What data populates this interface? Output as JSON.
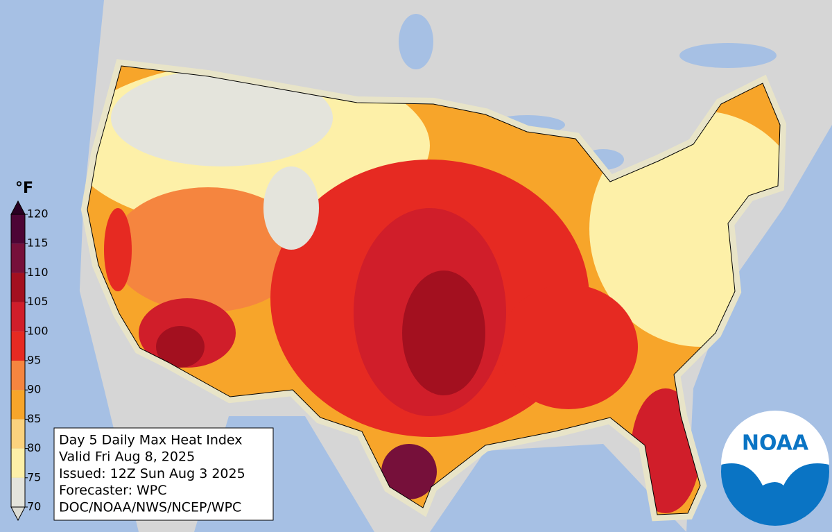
{
  "legend": {
    "unit": "°F",
    "ticks": [
      70,
      75,
      80,
      85,
      90,
      95,
      100,
      105,
      110,
      115,
      120
    ],
    "colors": [
      "#dcdcd4",
      "#e4e4dc",
      "#fdf0a8",
      "#fbd27e",
      "#f7a52a",
      "#f5853f",
      "#e62a22",
      "#d01e2a",
      "#a3101f",
      "#76103a",
      "#4d0535",
      "#2a0022"
    ]
  },
  "info": {
    "lines": [
      "Day 5 Daily Max Heat Index",
      "Valid Fri Aug 8, 2025",
      "Issued: 12Z Sun Aug 3 2025",
      "Forecaster: WPC",
      "DOC/NOAA/NWS/NCEP/WPC"
    ]
  },
  "logo": {
    "text": "NOAA"
  }
}
